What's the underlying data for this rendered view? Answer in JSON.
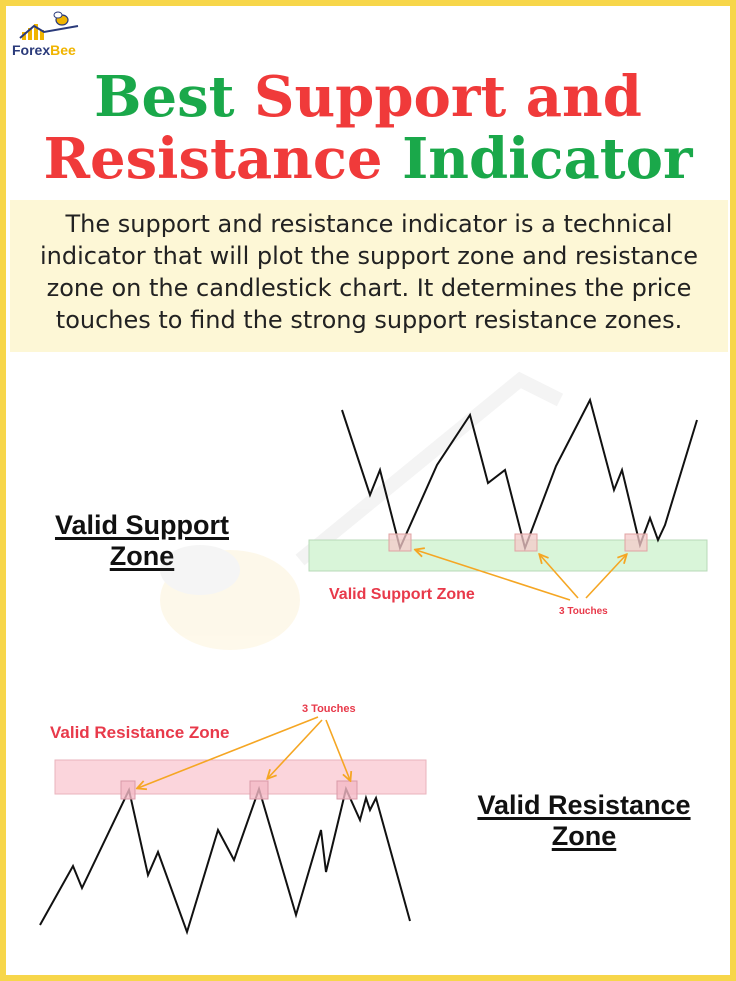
{
  "brand": {
    "name_part1": "Forex",
    "name_part2": "Bee",
    "logo_icon": "bee-chart-logo-icon"
  },
  "title": {
    "line1": [
      {
        "text": "Best ",
        "color": "#1aa84a"
      },
      {
        "text": "Support and",
        "color": "#f03a3a"
      }
    ],
    "line2": [
      {
        "text": "Resistance ",
        "color": "#f03a3a"
      },
      {
        "text": "Indicator",
        "color": "#1aa84a"
      }
    ]
  },
  "intro_text": "The support and resistance indicator is a technical indicator that will plot the support zone and resistance zone on the candlestick chart. It determines the price touches to find the strong support resistance zones.",
  "support_section": {
    "heading": "Valid Support Zone",
    "zone_label": "Valid Support Zone",
    "touch_label": "3 Touches",
    "zone_color": "#d9f5d9",
    "label_color": "#e8394a"
  },
  "resistance_section": {
    "heading": "Valid Resistance Zone",
    "zone_label": "Valid Resistance Zone",
    "touch_label": "3 Touches",
    "zone_color": "#fbd5dc",
    "label_color": "#e8394a"
  },
  "arrow_color": "#f5a623"
}
